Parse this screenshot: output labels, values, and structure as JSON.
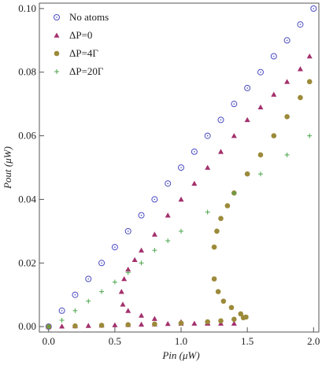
{
  "chart_data": {
    "type": "scatter",
    "xlabel": "Pin (μW)",
    "ylabel": "Pout (μW)",
    "xlim": [
      -0.07,
      2.04
    ],
    "ylim": [
      -0.0017,
      0.1017
    ],
    "xticks": [
      {
        "value": 0,
        "label": "0.0"
      },
      0.5,
      {
        "value": 1,
        "label": "1.0"
      },
      1.5,
      {
        "value": 2,
        "label": "2.0"
      }
    ],
    "yticks": [
      {
        "value": 0,
        "label": "0.00"
      },
      {
        "value": 0.02,
        "label": "0.02"
      },
      {
        "value": 0.04,
        "label": "0.04"
      },
      {
        "value": 0.06,
        "label": "0.06"
      },
      {
        "value": 0.08,
        "label": "0.08"
      },
      {
        "value": 0.1,
        "label": "0.10"
      }
    ],
    "legend": "upper left",
    "series": [
      {
        "name": "No atoms",
        "color": "#4b4bc2",
        "marker": "circle-open",
        "x": [
          0,
          0.1,
          0.2,
          0.3,
          0.4,
          0.5,
          0.6,
          0.7,
          0.8,
          0.9,
          1.0,
          1.1,
          1.2,
          1.3,
          1.4,
          1.5,
          1.6,
          1.7,
          1.8,
          1.9,
          2.0
        ],
        "values": [
          0,
          0.005,
          0.01,
          0.015,
          0.02,
          0.025,
          0.03,
          0.035,
          0.04,
          0.045,
          0.05,
          0.055,
          0.06,
          0.065,
          0.07,
          0.075,
          0.08,
          0.085,
          0.09,
          0.095,
          0.1
        ]
      },
      {
        "name": "ΔP=0",
        "color": "#a3306c",
        "marker": "triangle",
        "x": [
          0,
          0.1,
          0.2,
          0.3,
          0.4,
          0.5,
          0.6,
          0.7,
          0.8,
          0.9,
          1.0,
          1.1,
          1.2,
          1.3,
          1.4,
          0.56,
          0.6,
          0.7,
          0.8,
          1.0,
          1.2,
          0.55,
          0.57,
          0.6,
          0.65,
          0.7,
          0.8,
          0.9,
          1.0,
          1.1,
          1.2,
          1.3,
          1.4,
          1.5,
          1.6,
          1.7,
          1.8,
          1.9,
          1.97
        ],
        "values": [
          0,
          0.0001,
          0.0002,
          0.0003,
          0.0004,
          0.0005,
          0.0006,
          0.0007,
          0.0008,
          0.0009,
          0.001,
          0.001,
          0.001,
          0.001,
          0.001,
          0.007,
          0.005,
          0.0035,
          0.0025,
          0.0015,
          0.0012,
          0.011,
          0.015,
          0.018,
          0.021,
          0.024,
          0.029,
          0.035,
          0.04,
          0.045,
          0.05,
          0.055,
          0.06,
          0.065,
          0.069,
          0.073,
          0.077,
          0.081,
          0.085
        ]
      },
      {
        "name": "ΔP=4Γ",
        "color": "#9c8a3a",
        "marker": "circle",
        "x": [
          0,
          0.2,
          0.4,
          0.6,
          0.8,
          1.0,
          1.2,
          1.3,
          1.4,
          1.47,
          1.49,
          1.45,
          1.38,
          1.32,
          1.28,
          1.25,
          1.25,
          1.27,
          1.3,
          1.35,
          1.4,
          1.5,
          1.6,
          1.7,
          1.8,
          1.9,
          1.97
        ],
        "values": [
          0,
          0.0002,
          0.0004,
          0.0006,
          0.0008,
          0.0011,
          0.0015,
          0.0018,
          0.0023,
          0.0028,
          0.003,
          0.004,
          0.006,
          0.008,
          0.011,
          0.015,
          0.025,
          0.03,
          0.034,
          0.038,
          0.042,
          0.048,
          0.054,
          0.06,
          0.066,
          0.072,
          0.077
        ]
      },
      {
        "name": "ΔP=20Γ",
        "color": "#4ca64c",
        "marker": "plus",
        "x": [
          0,
          0.1,
          0.2,
          0.3,
          0.4,
          0.5,
          0.6,
          0.7,
          0.8,
          0.9,
          1.0,
          1.2,
          1.4,
          1.6,
          1.8,
          1.97
        ],
        "values": [
          0,
          0.002,
          0.005,
          0.008,
          0.011,
          0.014,
          0.017,
          0.02,
          0.024,
          0.027,
          0.03,
          0.036,
          0.042,
          0.048,
          0.054,
          0.06
        ]
      }
    ]
  }
}
